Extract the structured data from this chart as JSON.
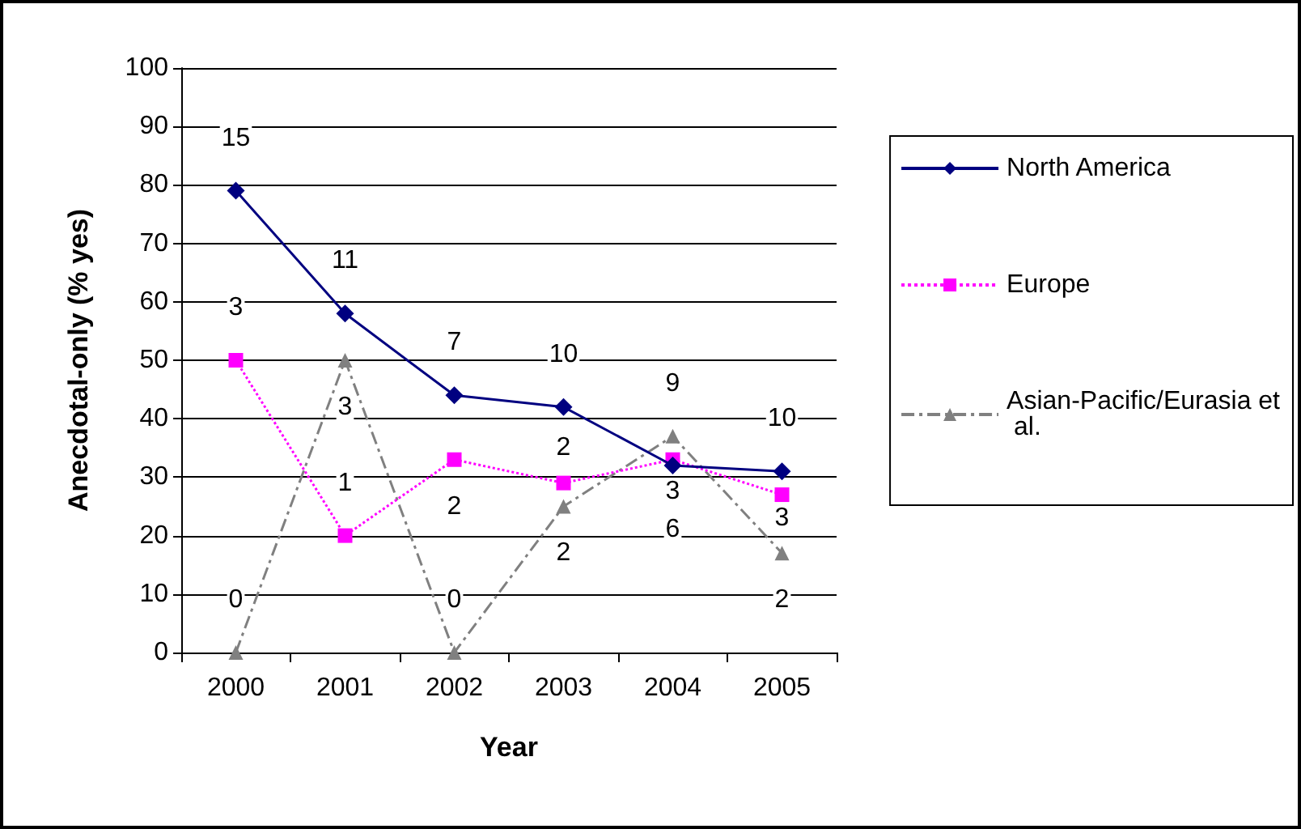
{
  "chart_data": {
    "type": "line",
    "xlabel": "Year",
    "ylabel": "Anecdotal-only (% yes)",
    "categories": [
      "2000",
      "2001",
      "2002",
      "2003",
      "2004",
      "2005"
    ],
    "ylim": [
      0,
      100
    ],
    "yticks": [
      0,
      10,
      20,
      30,
      40,
      50,
      60,
      70,
      80,
      90,
      100
    ],
    "grid": "y",
    "legend": "right",
    "series": [
      {
        "name": "North America",
        "color": "#000080",
        "marker": "diamond",
        "line_style": "solid",
        "values": [
          79,
          58,
          44,
          42,
          32,
          31
        ]
      },
      {
        "name": "Europe",
        "color": "#ff00ff",
        "marker": "square",
        "line_style": "dotted",
        "values": [
          50,
          20,
          33,
          29,
          33,
          27
        ]
      },
      {
        "name": "Asian-Pacific/Eurasia et al.",
        "color": "#808080",
        "marker": "triangle",
        "line_style": "dashed",
        "values": [
          0,
          50,
          0,
          25,
          37,
          17
        ]
      }
    ],
    "annotations": [
      {
        "text": "15",
        "x": "2000",
        "y": 88
      },
      {
        "text": "11",
        "x": "2001",
        "y": 67
      },
      {
        "text": "7",
        "x": "2002",
        "y": 53
      },
      {
        "text": "10",
        "x": "2003",
        "y": 51
      },
      {
        "text": "9",
        "x": "2004",
        "y": 46
      },
      {
        "text": "10",
        "x": "2005",
        "y": 40
      },
      {
        "text": "3",
        "x": "2000",
        "y": 59
      },
      {
        "text": "3",
        "x": "2001",
        "y": 42
      },
      {
        "text": "1",
        "x": "2001",
        "y": 29
      },
      {
        "text": "2",
        "x": "2002",
        "y": 25
      },
      {
        "text": "2",
        "x": "2003",
        "y": 35
      },
      {
        "text": "3",
        "x": "2004",
        "y": 27.5
      },
      {
        "text": "6",
        "x": "2004",
        "y": 21
      },
      {
        "text": "3",
        "x": "2005",
        "y": 23
      },
      {
        "text": "0",
        "x": "2000",
        "y": 9
      },
      {
        "text": "0",
        "x": "2002",
        "y": 9
      },
      {
        "text": "2",
        "x": "2003",
        "y": 17
      },
      {
        "text": "2",
        "x": "2005",
        "y": 9
      }
    ]
  }
}
